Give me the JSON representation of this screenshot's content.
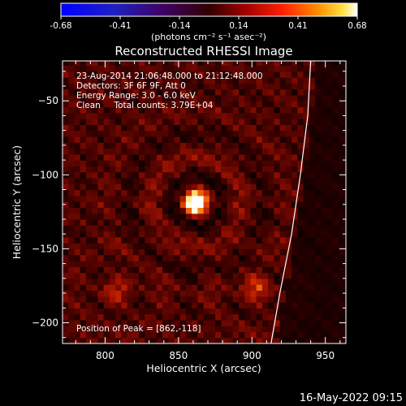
{
  "chart_data": {
    "type": "heatmap",
    "title": "Reconstructed RHESSI Image",
    "xlabel": "Heliocentric X (arcsec)",
    "ylabel": "Heliocentric Y (arcsec)",
    "xlim": [
      771,
      964
    ],
    "ylim": [
      -214,
      -23
    ],
    "xticks": [
      800,
      850,
      900,
      950
    ],
    "yticks": [
      -50,
      -100,
      -150,
      -200
    ],
    "colorbar": {
      "min": -0.68,
      "max": 0.68,
      "ticks": [
        "-0.68",
        "-0.41",
        "-0.14",
        "0.14",
        "0.41",
        "0.68"
      ],
      "units": "(photons cm⁻² s⁻¹ asec⁻²)"
    },
    "sources": [
      {
        "x": 862,
        "y": -118,
        "peak": 0.68,
        "sigma": 6
      },
      {
        "x": 903,
        "y": -177,
        "peak": 0.22,
        "sigma": 7
      },
      {
        "x": 808,
        "y": -178,
        "peak": 0.18,
        "sigma": 7
      }
    ],
    "limb_points": [
      [
        940,
        -23
      ],
      [
        938,
        -60
      ],
      [
        933,
        -100
      ],
      [
        927,
        -140
      ],
      [
        919,
        -180
      ],
      [
        913,
        -214
      ]
    ],
    "peak_position": [
      862,
      -118
    ],
    "info": {
      "line1": "23-Aug-2014 21:06:48.000 to 21:12:48.000",
      "line2": "Detectors: 3F 6F 9F, Att 0",
      "line3": "Energy Range: 3.0 - 6.0 keV",
      "line4": "Clean     Total counts: 3.79E+04",
      "peak_text": "Position of Peak = [862,-118]"
    }
  },
  "footer": {
    "timestamp": "16-May-2022 09:15"
  }
}
